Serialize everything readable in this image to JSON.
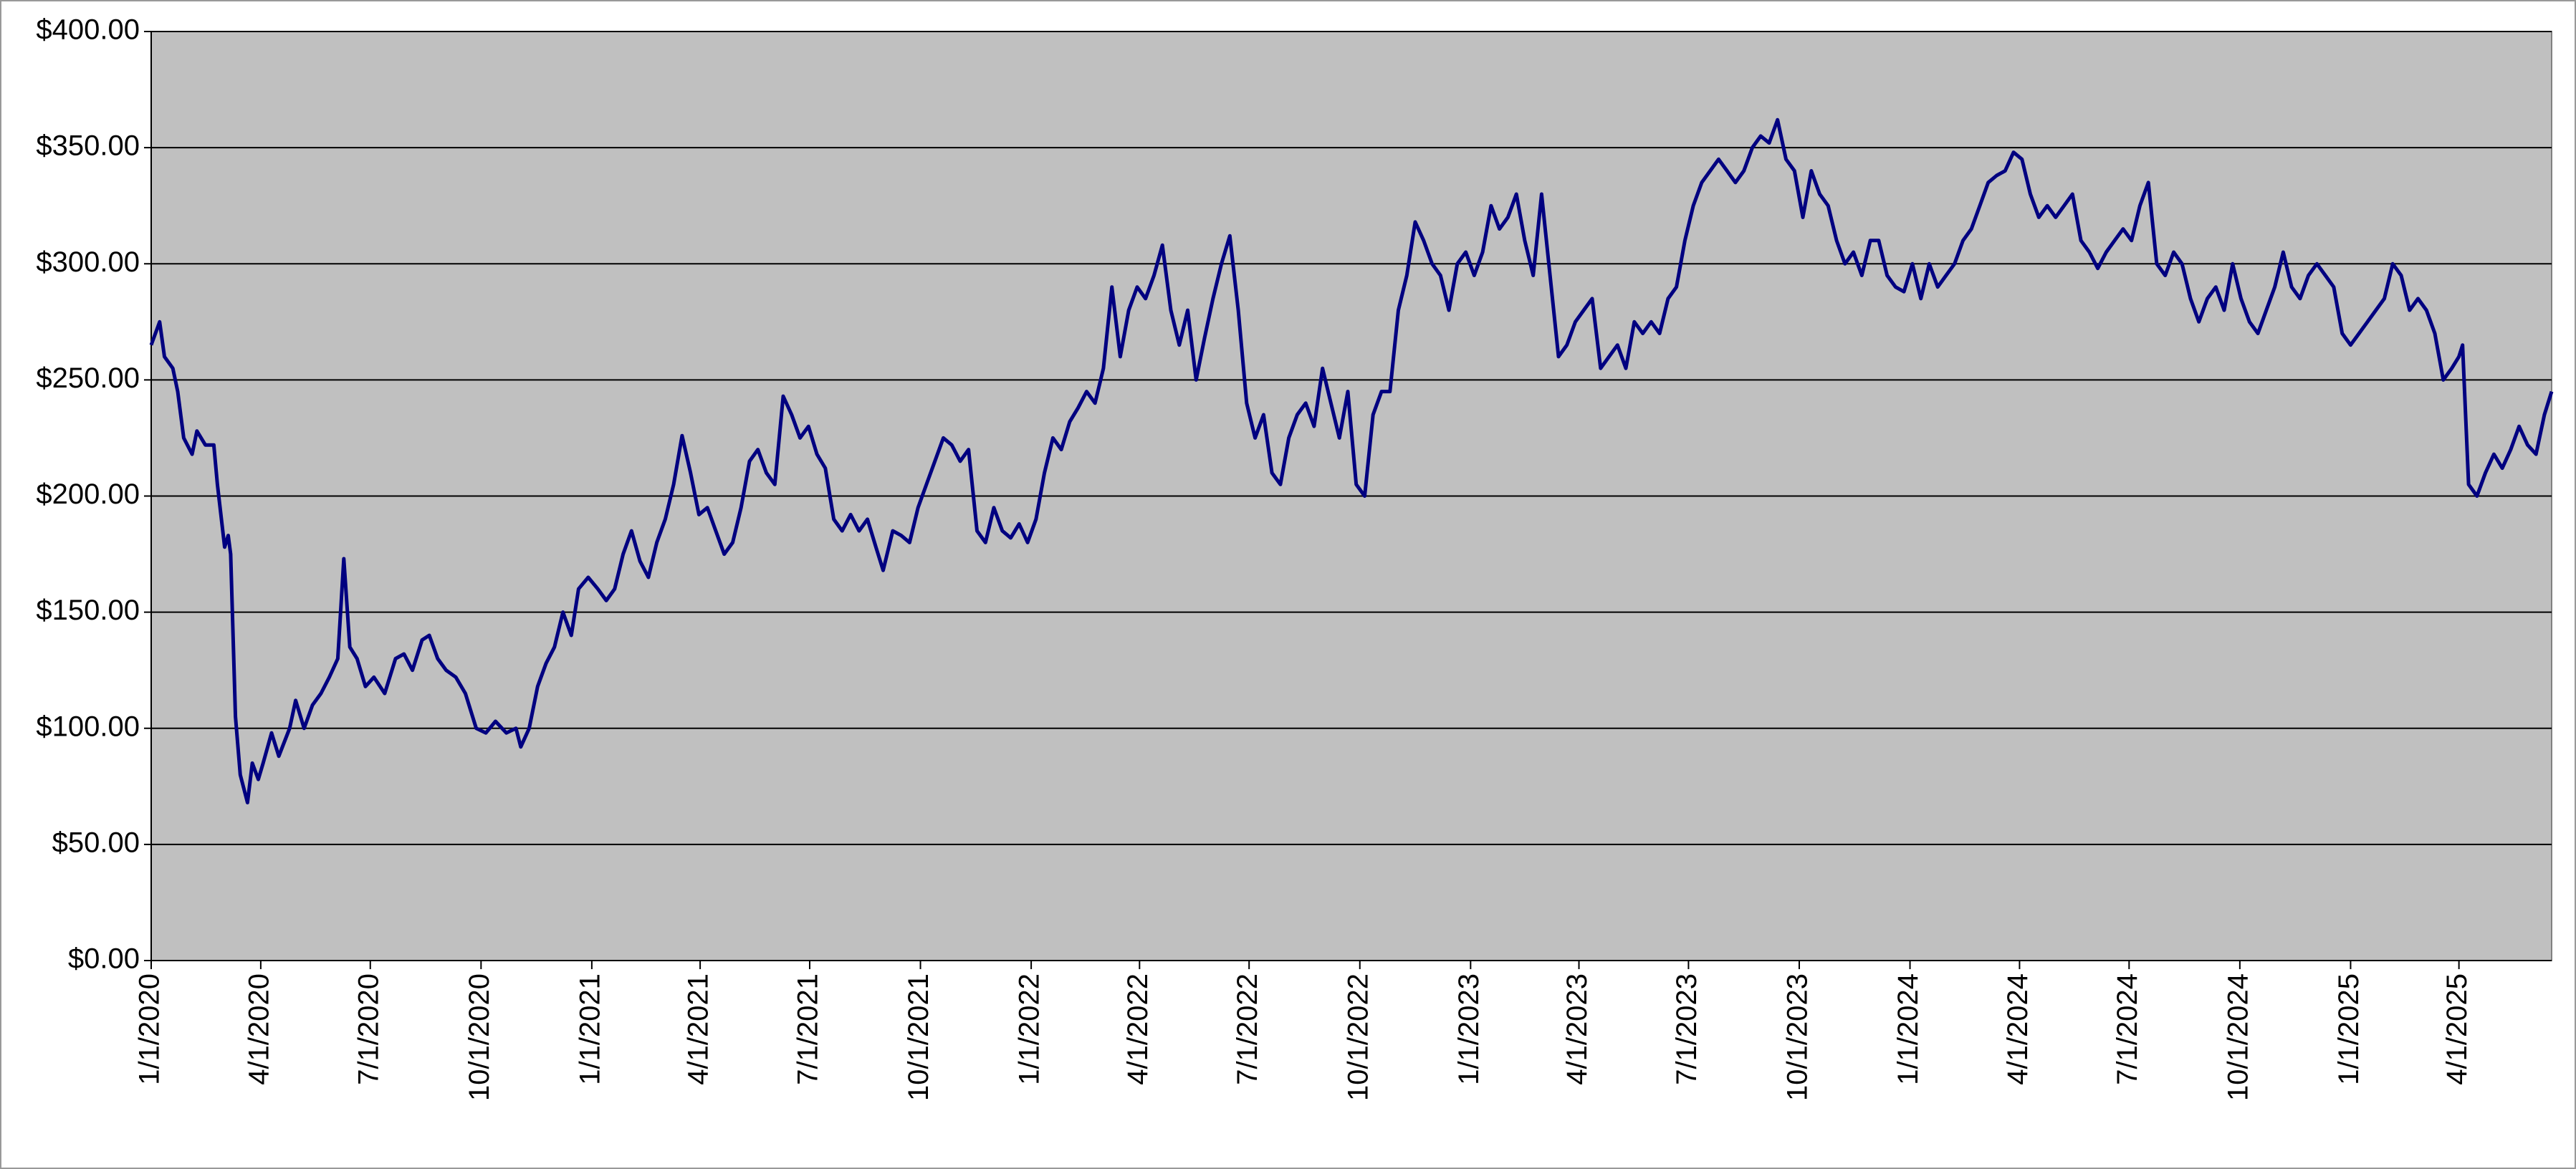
{
  "chart_data": {
    "type": "line",
    "color": "#000080",
    "background": "#c0c0c0",
    "grid": true,
    "x": [
      "1/1/2020",
      "1/8/2020",
      "1/12/2020",
      "1/19/2020",
      "1/23/2020",
      "1/28/2020",
      "2/4/2020",
      "2/8/2020",
      "2/15/2020",
      "2/22/2020",
      "2/25/2020",
      "3/2/2020",
      "3/5/2020",
      "3/7/2020",
      "3/11/2020",
      "3/15/2020",
      "3/21/2020",
      "3/25/2020",
      "3/30/2020",
      "4/3/2020",
      "4/10/2020",
      "4/16/2020",
      "4/25/2020",
      "4/30/2020",
      "5/7/2020",
      "5/14/2020",
      "5/21/2020",
      "5/28/2020",
      "6/4/2020",
      "6/9/2020",
      "6/14/2020",
      "6/20/2020",
      "6/27/2020",
      "7/4/2020",
      "7/13/2020",
      "7/22/2020",
      "7/29/2020",
      "8/5/2020",
      "8/13/2020",
      "8/19/2020",
      "8/26/2020",
      "9/2/2020",
      "9/10/2020",
      "9/18/2020",
      "9/27/2020",
      "10/5/2020",
      "10/13/2020",
      "10/22/2020",
      "10/30/2020",
      "11/3/2020",
      "11/10/2020",
      "11/17/2020",
      "11/24/2020",
      "12/1/2020",
      "12/8/2020",
      "12/15/2020",
      "12/21/2020",
      "12/29/2020",
      "1/6/2021",
      "1/13/2021",
      "1/20/2021",
      "1/27/2021",
      "2/3/2021",
      "2/10/2021",
      "2/17/2021",
      "2/24/2021",
      "3/3/2021",
      "3/10/2021",
      "3/17/2021",
      "3/24/2021",
      "3/31/2021",
      "4/7/2021",
      "4/14/2021",
      "4/21/2021",
      "4/28/2021",
      "5/5/2021",
      "5/12/2021",
      "5/19/2021",
      "5/26/2021",
      "6/2/2021",
      "6/9/2021",
      "6/16/2021",
      "6/23/2021",
      "6/30/2021",
      "7/7/2021",
      "7/14/2021",
      "7/21/2021",
      "7/28/2021",
      "8/4/2021",
      "8/11/2021",
      "8/18/2021",
      "8/25/2021",
      "8/31/2021",
      "9/8/2021",
      "9/15/2021",
      "9/22/2021",
      "9/29/2021",
      "10/6/2021",
      "10/13/2021",
      "10/20/2021",
      "10/27/2021",
      "11/3/2021",
      "11/10/2021",
      "11/17/2021",
      "11/24/2021",
      "12/1/2021",
      "12/8/2021",
      "12/15/2021",
      "12/22/2021",
      "12/29/2021",
      "1/5/2022",
      "1/12/2022",
      "1/19/2022",
      "1/26/2022",
      "2/2/2022",
      "2/9/2022",
      "2/16/2022",
      "2/23/2022",
      "3/2/2022",
      "3/9/2022",
      "3/16/2022",
      "3/23/2022",
      "3/30/2022",
      "4/6/2022",
      "4/13/2022",
      "4/20/2022",
      "4/27/2022",
      "5/4/2022",
      "5/11/2022",
      "5/18/2022",
      "5/25/2022",
      "6/1/2022",
      "6/8/2022",
      "6/15/2022",
      "6/22/2022",
      "6/29/2022",
      "7/6/2022",
      "7/13/2022",
      "7/20/2022",
      "7/27/2022",
      "8/3/2022",
      "8/10/2022",
      "8/17/2022",
      "8/24/2022",
      "8/31/2022",
      "9/7/2022",
      "9/14/2022",
      "9/21/2022",
      "9/28/2022",
      "10/5/2022",
      "10/12/2022",
      "10/19/2022",
      "10/26/2022",
      "11/2/2022",
      "11/9/2022",
      "11/16/2022",
      "11/23/2022",
      "11/30/2022",
      "12/7/2022",
      "12/14/2022",
      "12/21/2022",
      "12/28/2022",
      "1/4/2023",
      "1/11/2023",
      "1/18/2023",
      "1/25/2023",
      "2/1/2023",
      "2/8/2023",
      "2/15/2023",
      "2/22/2023",
      "3/1/2023",
      "3/8/2023",
      "3/15/2023",
      "3/22/2023",
      "3/29/2023",
      "4/5/2023",
      "4/12/2023",
      "4/19/2023",
      "4/26/2023",
      "5/3/2023",
      "5/10/2023",
      "5/17/2023",
      "5/24/2023",
      "5/31/2023",
      "6/7/2023",
      "6/14/2023",
      "6/21/2023",
      "6/28/2023",
      "7/5/2023",
      "7/12/2023",
      "7/19/2023",
      "7/26/2023",
      "8/2/2023",
      "8/9/2023",
      "8/16/2023",
      "8/23/2023",
      "8/30/2023",
      "9/6/2023",
      "9/13/2023",
      "9/20/2023",
      "9/27/2023",
      "10/4/2023",
      "10/11/2023",
      "10/18/2023",
      "10/25/2023",
      "11/1/2023",
      "11/8/2023",
      "11/15/2023",
      "11/22/2023",
      "11/29/2023",
      "12/6/2023",
      "12/13/2023",
      "12/20/2023",
      "12/27/2023",
      "1/3/2024",
      "1/10/2024",
      "1/17/2024",
      "1/24/2024",
      "1/31/2024",
      "2/7/2024",
      "2/14/2024",
      "2/21/2024",
      "2/28/2024",
      "3/6/2024",
      "3/13/2024",
      "3/20/2024",
      "3/27/2024",
      "4/3/2024",
      "4/10/2024",
      "4/17/2024",
      "4/24/2024",
      "5/1/2024",
      "5/8/2024",
      "5/15/2024",
      "5/22/2024",
      "5/29/2024",
      "6/5/2024",
      "6/12/2024",
      "6/19/2024",
      "6/26/2024",
      "7/3/2024",
      "7/10/2024",
      "7/17/2024",
      "7/24/2024",
      "7/31/2024",
      "8/7/2024",
      "8/14/2024",
      "8/21/2024",
      "8/28/2024",
      "9/4/2024",
      "9/11/2024",
      "9/18/2024",
      "9/25/2024",
      "10/2/2024",
      "10/9/2024",
      "10/16/2024",
      "10/23/2024",
      "10/30/2024",
      "11/6/2024",
      "11/13/2024",
      "11/20/2024",
      "11/27/2024",
      "12/4/2024",
      "12/11/2024",
      "12/18/2024",
      "12/25/2024",
      "1/1/2025",
      "1/8/2025",
      "1/15/2025",
      "1/22/2025",
      "1/29/2025",
      "2/5/2025",
      "2/12/2025",
      "2/19/2025",
      "2/26/2025",
      "3/5/2025",
      "3/12/2025",
      "3/19/2025",
      "3/26/2025",
      "4/1/2025",
      "4/4/2025",
      "4/9/2025",
      "4/16/2025",
      "4/23/2025",
      "4/30/2025",
      "5/7/2025",
      "5/14/2025",
      "5/21/2025",
      "5/28/2025",
      "6/4/2025",
      "6/11/2025",
      "6/17/2025"
    ],
    "values": [
      265,
      275,
      260,
      255,
      245,
      225,
      218,
      228,
      222,
      222,
      205,
      178,
      183,
      175,
      105,
      80,
      68,
      85,
      78,
      85,
      98,
      88,
      100,
      112,
      100,
      110,
      115,
      122,
      130,
      173,
      135,
      130,
      118,
      122,
      115,
      130,
      132,
      125,
      138,
      140,
      130,
      125,
      122,
      115,
      100,
      98,
      103,
      98,
      100,
      92,
      100,
      118,
      128,
      135,
      150,
      140,
      160,
      165,
      160,
      155,
      160,
      175,
      185,
      172,
      165,
      180,
      190,
      205,
      226,
      210,
      192,
      195,
      185,
      175,
      180,
      195,
      215,
      220,
      210,
      205,
      243,
      235,
      225,
      230,
      218,
      212,
      190,
      185,
      192,
      185,
      190,
      178,
      168,
      185,
      183,
      180,
      195,
      205,
      215,
      225,
      222,
      215,
      220,
      185,
      180,
      195,
      185,
      182,
      188,
      180,
      190,
      210,
      225,
      220,
      232,
      238,
      245,
      240,
      255,
      290,
      260,
      280,
      290,
      285,
      295,
      308,
      280,
      265,
      280,
      250,
      268,
      285,
      300,
      312,
      280,
      240,
      225,
      235,
      210,
      205,
      225,
      235,
      240,
      230,
      255,
      240,
      225,
      245,
      205,
      200,
      235,
      245,
      245,
      280,
      295,
      318,
      310,
      300,
      295,
      280,
      300,
      305,
      295,
      305,
      325,
      315,
      320,
      330,
      310,
      295,
      330,
      295,
      260,
      265,
      275,
      280,
      285,
      255,
      260,
      265,
      255,
      275,
      270,
      275,
      270,
      285,
      290,
      310,
      325,
      335,
      340,
      345,
      340,
      335,
      340,
      350,
      355,
      352,
      362,
      345,
      340,
      320,
      340,
      330,
      325,
      310,
      300,
      305,
      295,
      310,
      310,
      295,
      290,
      288,
      300,
      285,
      300,
      290,
      295,
      300,
      310,
      315,
      325,
      335,
      338,
      340,
      348,
      345,
      330,
      320,
      325,
      320,
      325,
      330,
      310,
      305,
      298,
      305,
      310,
      315,
      310,
      325,
      335,
      300,
      295,
      305,
      300,
      285,
      275,
      285,
      290,
      280,
      300,
      285,
      275,
      270,
      280,
      290,
      305,
      290,
      285,
      295,
      300,
      295,
      290,
      270,
      265,
      270,
      275,
      280,
      285,
      300,
      295,
      280,
      285,
      280,
      270,
      250,
      255,
      260,
      265,
      205,
      200,
      210,
      218,
      212,
      220,
      230,
      222,
      218,
      235,
      245
    ],
    "xlim": [
      "1/1/2020",
      "6/17/2025"
    ],
    "xticks": [
      "1/1/2020",
      "4/1/2020",
      "7/1/2020",
      "10/1/2020",
      "1/1/2021",
      "4/1/2021",
      "7/1/2021",
      "10/1/2021",
      "1/1/2022",
      "4/1/2022",
      "7/1/2022",
      "10/1/2022",
      "1/1/2023",
      "4/1/2023",
      "7/1/2023",
      "10/1/2023",
      "1/1/2024",
      "4/1/2024",
      "7/1/2024",
      "10/1/2024",
      "1/1/2025",
      "4/1/2025"
    ],
    "ylim": [
      0,
      400
    ],
    "yticks": [
      {
        "value": 0,
        "label": "$0.00"
      },
      {
        "value": 50,
        "label": "$50.00"
      },
      {
        "value": 100,
        "label": "$100.00"
      },
      {
        "value": 150,
        "label": "$150.00"
      },
      {
        "value": 200,
        "label": "$200.00"
      },
      {
        "value": 250,
        "label": "$250.00"
      },
      {
        "value": 300,
        "label": "$300.00"
      },
      {
        "value": 350,
        "label": "$350.00"
      },
      {
        "value": 400,
        "label": "$400.00"
      }
    ]
  }
}
